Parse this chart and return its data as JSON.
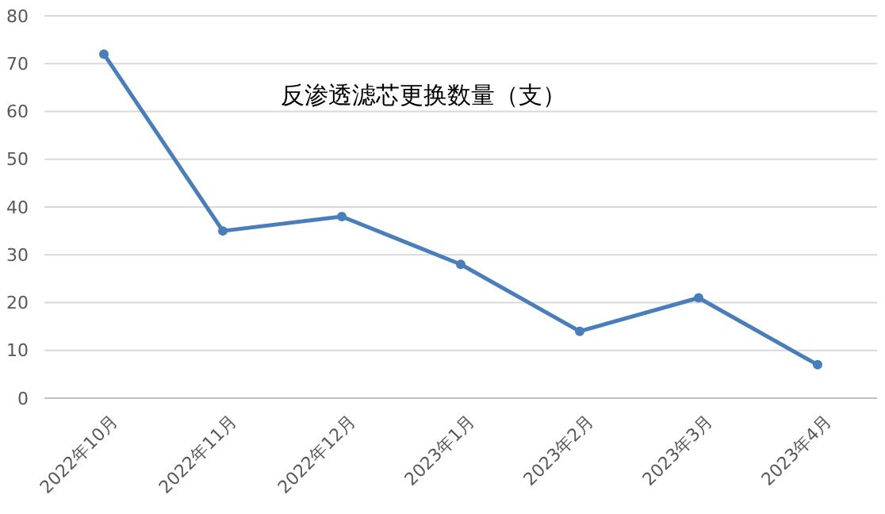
{
  "chart_data": {
    "type": "line",
    "title": "反渗透滤芯更换数量（支）",
    "categories": [
      "2022年10月",
      "2022年11月",
      "2022年12月",
      "2023年1月",
      "2023年2月",
      "2023年3月",
      "2023年4月"
    ],
    "series": [
      {
        "color": "#4a7ebb",
        "values": [
          72,
          35,
          38,
          28,
          14,
          21,
          7
        ]
      }
    ],
    "ylim": [
      0,
      80
    ],
    "yticks": [
      0,
      10,
      20,
      30,
      40,
      50,
      60,
      70,
      80
    ],
    "grid": "y",
    "marker": "circle",
    "line_style": "solid"
  }
}
